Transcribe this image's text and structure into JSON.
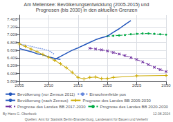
{
  "chart_data": {
    "type": "line",
    "title": "Am Mellensee: Bevölkerungsentwicklung (2005-2015) und\nPrognosen (bis 2030) in den aktuellen Grenzen",
    "annotations": [
      "By Hans G. Oberbeck",
      "Quellen: Amt für Statistik Berlin-Brandenburg, Landesamt für Bauen und Verkehr",
      "12.08.2024"
    ],
    "xlim": [
      2005,
      2030
    ],
    "xticks": [
      2005,
      2010,
      2015,
      2020,
      2025,
      2030
    ],
    "ylim": [
      5800,
      7500
    ],
    "yticks": [
      {
        "value": 5800,
        "label": "5.800"
      },
      {
        "value": 6000,
        "label": "6.000"
      },
      {
        "value": 6200,
        "label": "6.200"
      },
      {
        "value": 6400,
        "label": "6.400"
      },
      {
        "value": 6600,
        "label": "6.600"
      },
      {
        "value": 6800,
        "label": "6.800"
      },
      {
        "value": 7000,
        "label": "7.000"
      },
      {
        "value": 7200,
        "label": "7.200"
      },
      {
        "value": 7400,
        "label": "7.400"
      }
    ],
    "grid": true,
    "legend": "bottom",
    "series": [
      {
        "name": "Bevölkerung (vor Zensus 2011)",
        "color": "#2255bb",
        "line_style": "solid",
        "x": [
          2005,
          2006,
          2007,
          2008,
          2009,
          2010,
          2011,
          2012
        ],
        "values": [
          6640,
          6600,
          6560,
          6510,
          6480,
          6430,
          6390,
          6360
        ]
      },
      {
        "name": "Einwohnerfelde pos",
        "color": "#6688dd",
        "line_style": "dotted",
        "x": [
          2005,
          2006,
          2007,
          2008,
          2009,
          2010,
          2011
        ],
        "values": [
          6760,
          6730,
          6700,
          6660,
          6630,
          6590,
          6490
        ]
      },
      {
        "name": "Bevölkerung (nach Zensus)",
        "color": "#2255bb",
        "line_style": "solid",
        "x": [
          2011,
          2012,
          2013,
          2014,
          2015,
          2016,
          2017,
          2018,
          2019,
          2020,
          2021,
          2022,
          2023,
          2024
        ],
        "values": [
          6360,
          6440,
          6520,
          6600,
          6660,
          6730,
          6800,
          6870,
          6920,
          6960,
          7060,
          7150,
          7260,
          7360
        ]
      },
      {
        "name": "Prognose des Landes BB 2005-2030",
        "color": "#ccaa00",
        "line_style": "solid",
        "marker": "plus",
        "x": [
          2005,
          2006,
          2007,
          2008,
          2009,
          2010,
          2011,
          2012,
          2013,
          2014,
          2015,
          2016,
          2017,
          2018,
          2019,
          2020,
          2021,
          2025,
          2030
        ],
        "values": [
          6760,
          6700,
          6630,
          6560,
          6490,
          6420,
          6340,
          6250,
          6150,
          6030,
          5900,
          5860,
          5900,
          5910,
          5870,
          5870,
          5900,
          5940,
          5950
        ]
      },
      {
        "name": "Prognose des Landes BB 2017-2030",
        "color": "#7030a0",
        "line_style": "dashed",
        "marker": "x",
        "x": [
          2017,
          2018,
          2019,
          2020,
          2021,
          2022,
          2023,
          2024,
          2025,
          2026,
          2027,
          2028,
          2029,
          2030
        ],
        "values": [
          6650,
          6630,
          6610,
          6580,
          6540,
          6500,
          6460,
          6410,
          6360,
          6300,
          6230,
          6160,
          6100,
          6050
        ]
      },
      {
        "name": "Prognose des Landes BB 2020-2030",
        "color": "#00aa44",
        "line_style": "dashed",
        "marker": "circle",
        "x": [
          2020,
          2021,
          2022,
          2023,
          2024,
          2025,
          2026,
          2027,
          2028,
          2029,
          2030
        ],
        "values": [
          6960,
          6970,
          6980,
          6990,
          7010,
          7020,
          7030,
          7030,
          7020,
          7010,
          7000
        ]
      }
    ]
  }
}
